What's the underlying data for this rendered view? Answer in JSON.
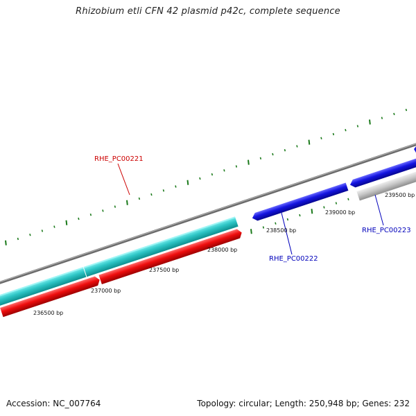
{
  "title": "Rhizobium etli CFN 42 plasmid p42c, complete sequence",
  "footer": {
    "accession": "Accession: NC_007764",
    "summary": "Topology: circular; Length: 250,948 bp; Genes: 232"
  },
  "colors": {
    "backbone": "#8a8a8a",
    "tick": "#1b7a1b",
    "cyan_feature": "#2ec6c6",
    "red_feature": "#ee0d0d",
    "blue_feature": "#1414e0",
    "grey_feature": "#bdbdbd",
    "label_red": "#cc0000",
    "label_blue": "#0000bb"
  },
  "scale_labels": [
    "236500 bp",
    "237000 bp",
    "237500 bp",
    "238000 bp",
    "238500 bp",
    "239000 bp",
    "239500 bp"
  ],
  "genes": [
    {
      "name": "RHE_PC00221",
      "color": "label_red"
    },
    {
      "name": "RHE_PC00222",
      "color": "label_blue"
    },
    {
      "name": "RHE_PC00223",
      "color": "label_blue"
    }
  ]
}
